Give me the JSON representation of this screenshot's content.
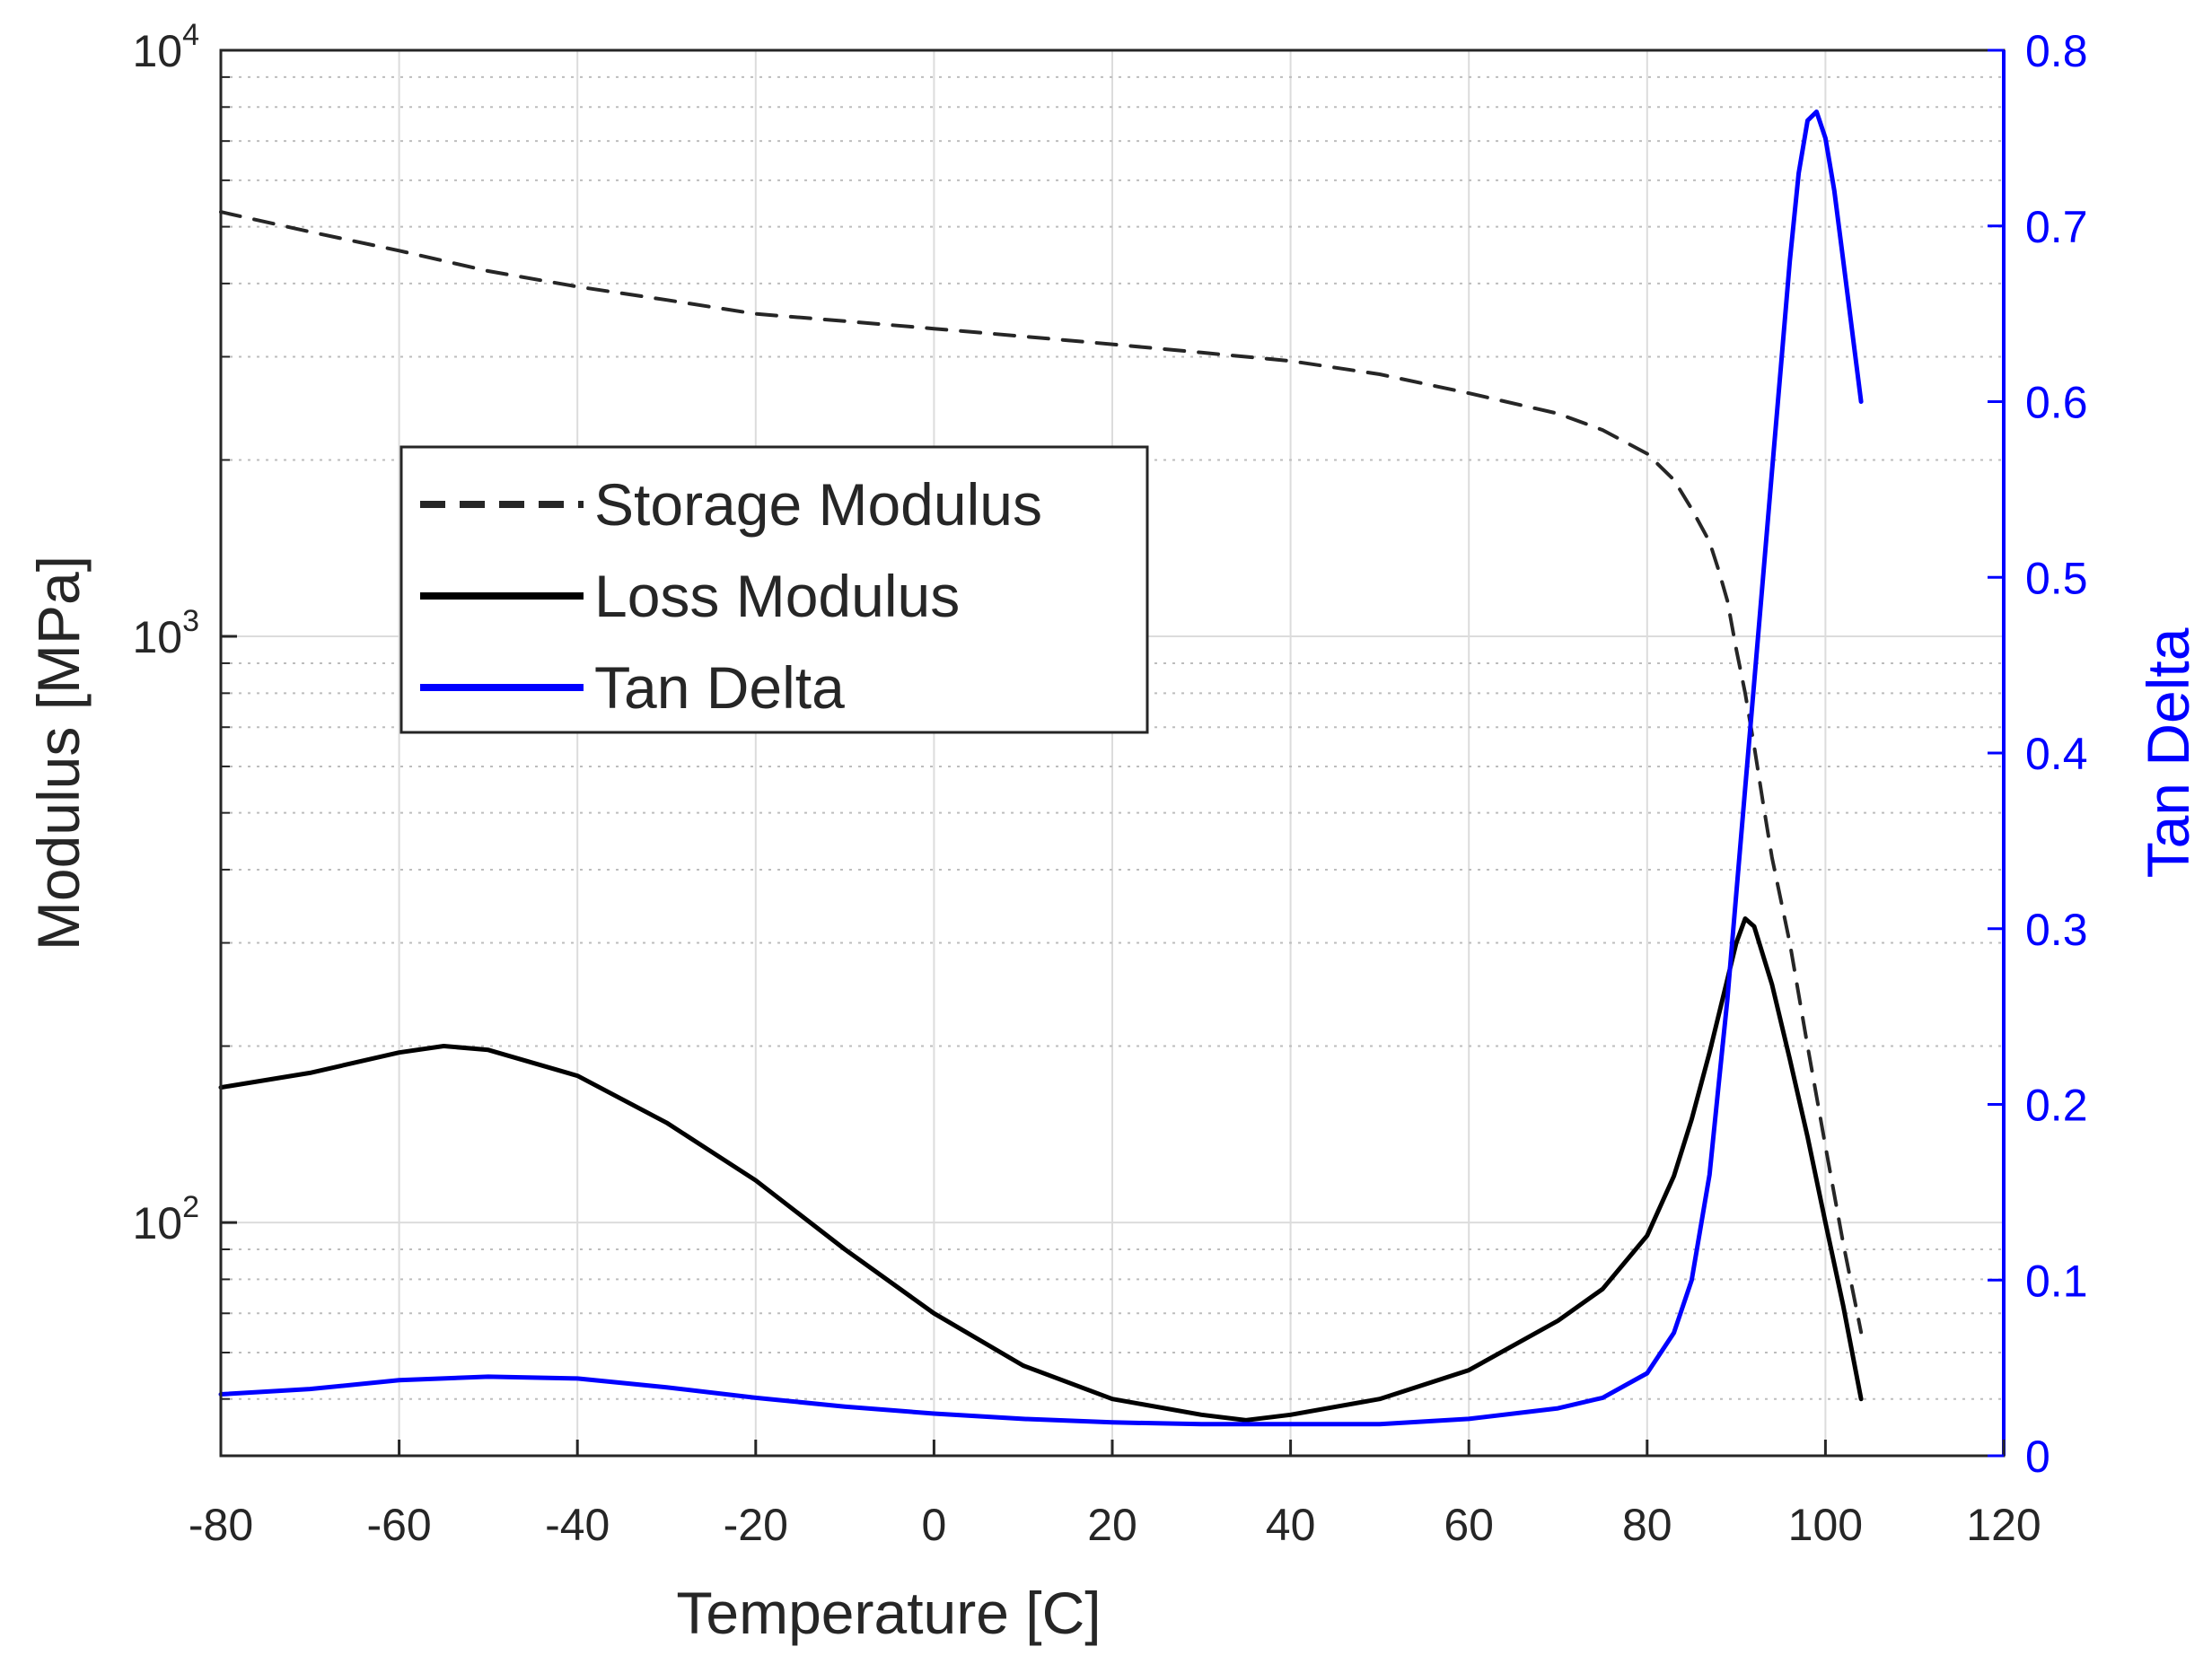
{
  "chart_data": {
    "type": "line",
    "title": "",
    "xlabel": "Temperature [C]",
    "ylabel_left": "Modulus [MPa]",
    "ylabel_right": "Tan Delta",
    "xlim": [
      -80,
      120
    ],
    "ylim_left": [
      40,
      10000
    ],
    "yscale_left": "log",
    "ylim_right": [
      0,
      0.8
    ],
    "grid": true,
    "legend_position": "upper-left",
    "x_ticks": [
      "-80",
      "-60",
      "-40",
      "-20",
      "0",
      "20",
      "40",
      "60",
      "80",
      "100",
      "120"
    ],
    "x_tick_values": [
      -80,
      -60,
      -40,
      -20,
      0,
      20,
      40,
      60,
      80,
      100,
      120
    ],
    "y_left_ticks": [
      {
        "value": 100,
        "base": "10",
        "exp": "2"
      },
      {
        "value": 1000,
        "base": "10",
        "exp": "3"
      },
      {
        "value": 10000,
        "base": "10",
        "exp": "4"
      }
    ],
    "y_right_ticks": [
      "0",
      "0.1",
      "0.2",
      "0.3",
      "0.4",
      "0.5",
      "0.6",
      "0.7",
      "0.8"
    ],
    "y_right_tick_values": [
      0,
      0.1,
      0.2,
      0.3,
      0.4,
      0.5,
      0.6,
      0.7,
      0.8
    ],
    "colors": {
      "storage": "#262626",
      "loss": "#000000",
      "tan": "#0000ff",
      "right_axis": "#0000ff"
    },
    "series": [
      {
        "name": "Storage Modulus",
        "axis": "left",
        "style": "dashed",
        "x": [
          -80,
          -70,
          -60,
          -50,
          -40,
          -30,
          -20,
          -10,
          0,
          10,
          20,
          30,
          40,
          50,
          60,
          70,
          75,
          80,
          83,
          85,
          87,
          88,
          89,
          90,
          91,
          92,
          93,
          94,
          96,
          98,
          100,
          102,
          104
        ],
        "y": [
          5300,
          4900,
          4550,
          4200,
          3950,
          3750,
          3550,
          3450,
          3350,
          3250,
          3150,
          3050,
          2950,
          2800,
          2600,
          2400,
          2250,
          2050,
          1850,
          1650,
          1450,
          1300,
          1150,
          950,
          800,
          650,
          520,
          420,
          300,
          200,
          135,
          92,
          65
        ]
      },
      {
        "name": "Loss Modulus",
        "axis": "left",
        "style": "solid",
        "x": [
          -80,
          -70,
          -60,
          -55,
          -50,
          -40,
          -30,
          -20,
          -10,
          0,
          10,
          20,
          30,
          35,
          40,
          50,
          60,
          70,
          75,
          80,
          83,
          85,
          87,
          89,
          90,
          91,
          92,
          94,
          96,
          98,
          100,
          102,
          104
        ],
        "y": [
          170,
          180,
          195,
          200,
          197,
          178,
          148,
          118,
          90,
          70,
          57,
          50,
          47,
          46,
          47,
          50,
          56,
          68,
          77,
          95,
          120,
          150,
          195,
          260,
          300,
          330,
          320,
          255,
          190,
          140,
          100,
          72,
          50
        ]
      },
      {
        "name": "Tan Delta",
        "axis": "right",
        "style": "solid",
        "x": [
          -80,
          -70,
          -60,
          -50,
          -40,
          -30,
          -20,
          -10,
          0,
          10,
          20,
          30,
          40,
          50,
          60,
          70,
          75,
          80,
          83,
          85,
          87,
          88,
          89,
          90,
          91,
          92,
          93,
          94,
          95,
          96,
          97,
          98,
          99,
          100,
          101,
          102,
          103,
          104
        ],
        "y": [
          0.035,
          0.038,
          0.043,
          0.045,
          0.044,
          0.039,
          0.033,
          0.028,
          0.024,
          0.021,
          0.019,
          0.018,
          0.018,
          0.018,
          0.021,
          0.027,
          0.033,
          0.047,
          0.07,
          0.1,
          0.16,
          0.21,
          0.26,
          0.32,
          0.38,
          0.44,
          0.5,
          0.56,
          0.62,
          0.68,
          0.73,
          0.76,
          0.765,
          0.75,
          0.72,
          0.68,
          0.64,
          0.6
        ]
      }
    ]
  }
}
